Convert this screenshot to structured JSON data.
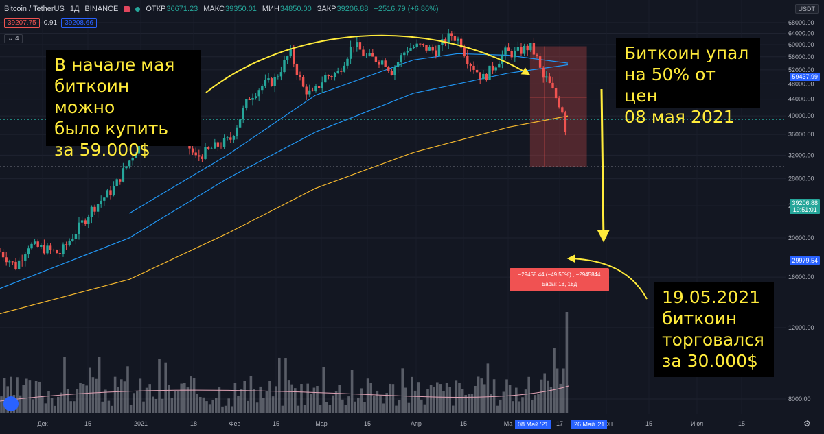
{
  "header": {
    "symbol": "Bitcoin / TetherUS",
    "interval": "1Д",
    "exchange": "BINANCE",
    "open_label": "ОТКР",
    "open_value": "36671.23",
    "high_label": "МАКС",
    "high_value": "39350.01",
    "low_label": "МИН",
    "low_value": "34850.00",
    "close_label": "ЗАКР",
    "close_value": "39206.88",
    "change": "+2516.79 (+6.86%)",
    "bid": "39207.75",
    "spread": "0.91",
    "ask": "39208.66",
    "indicators_count": "4"
  },
  "currency_label": "USDT",
  "colors": {
    "up": "#26a69a",
    "down": "#ef5350",
    "ma_fast": "#2196f3",
    "ma_slow": "#f5b82e",
    "annotation": "#ffeb3b",
    "background": "#131722"
  },
  "annotations": {
    "left": "В начале мая\nбиткоин можно\nбыло купить\nза 59.000$",
    "right_top": "Биткоин упал\nна 50% от цен\n08 мая 2021",
    "right_bottom": "19.05.2021\nбиткоин\nторговался\nза 30.000$"
  },
  "measure": {
    "line1": "−29458.44 (−49.56%) , −2945844",
    "line2": "Бары: 18, 18д"
  },
  "price_tags": {
    "top": "59437.99",
    "current": "39206.88",
    "countdown": "19:51:01",
    "bottom": "29979.54"
  },
  "date_range_labels": {
    "start": "08 Май '21",
    "end": "26 Май '21"
  },
  "chart_data": {
    "type": "candlestick",
    "y_scale": "log",
    "ylim": [
      7200,
      69000
    ],
    "y_ticks": [
      "8000.00",
      "12000.00",
      "16000.00",
      "20000.00",
      "24000.00",
      "28000.00",
      "32000.00",
      "36000.00",
      "40000.00",
      "44000.00",
      "48000.00",
      "52000.00",
      "56000.00",
      "60000.00",
      "64000.00",
      "68000.00"
    ],
    "x_ticks": [
      "Дек",
      "15",
      "2021",
      "18",
      "Фев",
      "15",
      "Мар",
      "15",
      "Апр",
      "15",
      "Ма",
      "17",
      "Июн",
      "15",
      "Июл",
      "15"
    ],
    "price_path": [
      [
        "2020-11-21",
        18500
      ],
      [
        "2020-11-26",
        17000
      ],
      [
        "2020-11-30",
        19200
      ],
      [
        "2020-12-05",
        18800
      ],
      [
        "2020-12-10",
        18300
      ],
      [
        "2020-12-16",
        21200
      ],
      [
        "2020-12-20",
        23500
      ],
      [
        "2020-12-27",
        26500
      ],
      [
        "2021-01-03",
        33000
      ],
      [
        "2021-01-08",
        40500
      ],
      [
        "2021-01-12",
        35000
      ],
      [
        "2021-01-14",
        39000
      ],
      [
        "2021-01-18",
        35500
      ],
      [
        "2021-01-22",
        31500
      ],
      [
        "2021-01-28",
        33500
      ],
      [
        "2021-02-02",
        35000
      ],
      [
        "2021-02-08",
        44500
      ],
      [
        "2021-02-12",
        47500
      ],
      [
        "2021-02-16",
        49000
      ],
      [
        "2021-02-21",
        57500
      ],
      [
        "2021-02-25",
        47000
      ],
      [
        "2021-02-28",
        45000
      ],
      [
        "2021-03-04",
        50000
      ],
      [
        "2021-03-08",
        51000
      ],
      [
        "2021-03-13",
        60500
      ],
      [
        "2021-03-17",
        56000
      ],
      [
        "2021-03-23",
        54500
      ],
      [
        "2021-03-25",
        51500
      ],
      [
        "2021-03-30",
        58800
      ],
      [
        "2021-04-03",
        59500
      ],
      [
        "2021-04-08",
        57800
      ],
      [
        "2021-04-13",
        63500
      ],
      [
        "2021-04-16",
        61000
      ],
      [
        "2021-04-18",
        55500
      ],
      [
        "2021-04-23",
        49500
      ],
      [
        "2021-04-26",
        52500
      ],
      [
        "2021-04-30",
        57500
      ],
      [
        "2021-05-03",
        57000
      ],
      [
        "2021-05-08",
        59437.99
      ],
      [
        "2021-05-10",
        56000
      ],
      [
        "2021-05-12",
        49500
      ],
      [
        "2021-05-13",
        49700
      ],
      [
        "2021-05-15",
        46500
      ],
      [
        "2021-05-17",
        43000
      ],
      [
        "2021-05-18",
        42800
      ],
      [
        "2021-05-19",
        36700
      ],
      [
        "2021-05-20",
        39206.88
      ]
    ],
    "series": [
      {
        "name": "",
        "kind": "moving-average",
        "values": [
          [
            "2020-11-21",
            13000
          ],
          [
            "2021-01-01",
            15800
          ],
          [
            "2021-02-01",
            20500
          ],
          [
            "2021-03-01",
            26500
          ],
          [
            "2021-04-01",
            32500
          ],
          [
            "2021-05-01",
            37500
          ],
          [
            "2021-05-20",
            40000
          ]
        ]
      },
      {
        "name": "",
        "kind": "moving-average",
        "values": [
          [
            "2020-11-21",
            15000
          ],
          [
            "2021-01-01",
            20000
          ],
          [
            "2021-02-01",
            28000
          ],
          [
            "2021-03-01",
            36500
          ],
          [
            "2021-04-01",
            45500
          ],
          [
            "2021-05-01",
            51000
          ],
          [
            "2021-05-20",
            53500
          ]
        ]
      },
      {
        "name": "",
        "kind": "moving-average",
        "values": [
          [
            "2021-01-01",
            23000
          ],
          [
            "2021-02-01",
            32000
          ],
          [
            "2021-03-01",
            45000
          ],
          [
            "2021-04-01",
            55000
          ],
          [
            "2021-04-15",
            57000
          ],
          [
            "2021-05-01",
            56500
          ],
          [
            "2021-05-20",
            54000
          ]
        ]
      }
    ],
    "measured_move": {
      "from_date": "2021-05-08",
      "to_date": "2021-05-26",
      "from_price": 59437.99,
      "to_price": 29979.54,
      "change": -29458.44,
      "change_percent": -49.56,
      "bars": 18
    },
    "volume": "shown as histogram at bottom"
  }
}
